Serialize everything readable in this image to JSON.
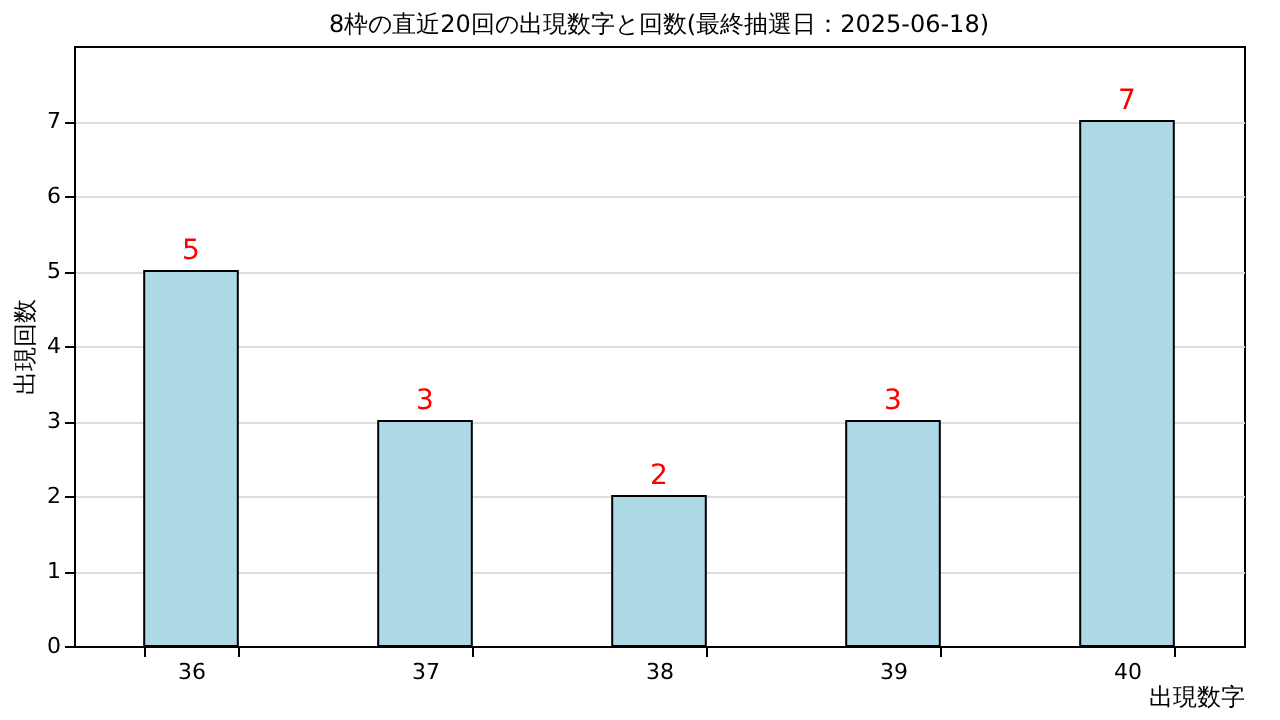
{
  "chart_data": {
    "type": "bar",
    "title": "8枠の直近20回の出現数字と回数(最終抽選日：2025-06-18)",
    "xlabel": "出現数字",
    "ylabel": "出現回数",
    "categories": [
      "36",
      "37",
      "38",
      "39",
      "40"
    ],
    "values": [
      5,
      3,
      2,
      3,
      7
    ],
    "color": "#add8e6",
    "ylim": [
      0,
      8
    ],
    "yticks": [
      0,
      1,
      2,
      3,
      4,
      5,
      6,
      7
    ],
    "grid": "y",
    "data_labels": true
  }
}
